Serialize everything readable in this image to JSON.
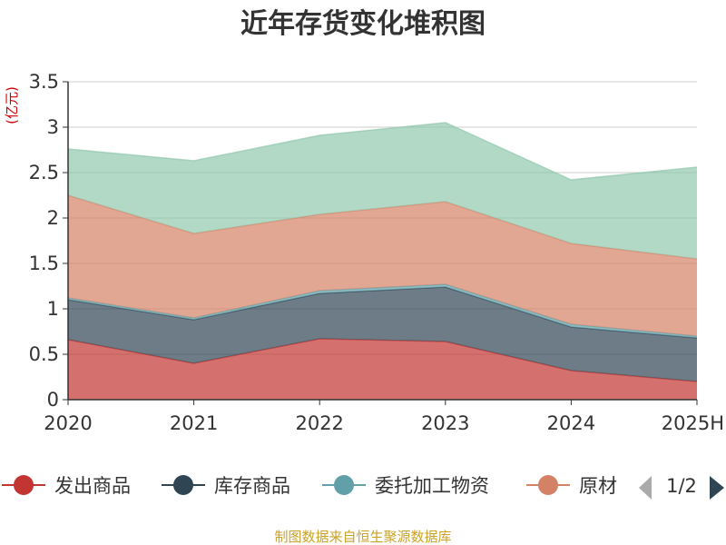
{
  "colors": {
    "发出商品": "#c23531",
    "库存商品": "#2f4554",
    "委托加工物资": "#61a0a8",
    "原材料": "#d48265",
    "other": "#91c7ae"
  },
  "chart_data": {
    "type": "area",
    "stacked": true,
    "title": "近年存货变化堆积图",
    "y_unit": "(亿元)",
    "categories": [
      "2020",
      "2021",
      "2022",
      "2023",
      "2024",
      "2025H"
    ],
    "ylim": [
      0,
      3.5
    ],
    "y_ticks": [
      "0",
      "0.5",
      "1",
      "1.5",
      "2",
      "2.5",
      "3",
      "3.5"
    ],
    "grid": true,
    "series": [
      {
        "name": "发出商品",
        "values": [
          0.66,
          0.4,
          0.67,
          0.64,
          0.32,
          0.2
        ]
      },
      {
        "name": "库存商品",
        "values": [
          0.44,
          0.48,
          0.5,
          0.6,
          0.48,
          0.48
        ]
      },
      {
        "name": "委托加工物资",
        "values": [
          0.02,
          0.02,
          0.03,
          0.03,
          0.03,
          0.02
        ]
      },
      {
        "name": "原材料",
        "values": [
          1.13,
          0.93,
          0.84,
          0.91,
          0.89,
          0.85
        ]
      },
      {
        "name": "",
        "values": [
          0.51,
          0.8,
          0.87,
          0.87,
          0.7,
          1.01
        ]
      }
    ]
  },
  "legend": {
    "items": [
      {
        "label": "发出商品"
      },
      {
        "label": "库存商品"
      },
      {
        "label": "委托加工物资"
      },
      {
        "label": "原材料",
        "visible_label": "原材"
      }
    ],
    "page_indicator": "1/2"
  },
  "source": "制图数据来自恒生聚源数据库"
}
